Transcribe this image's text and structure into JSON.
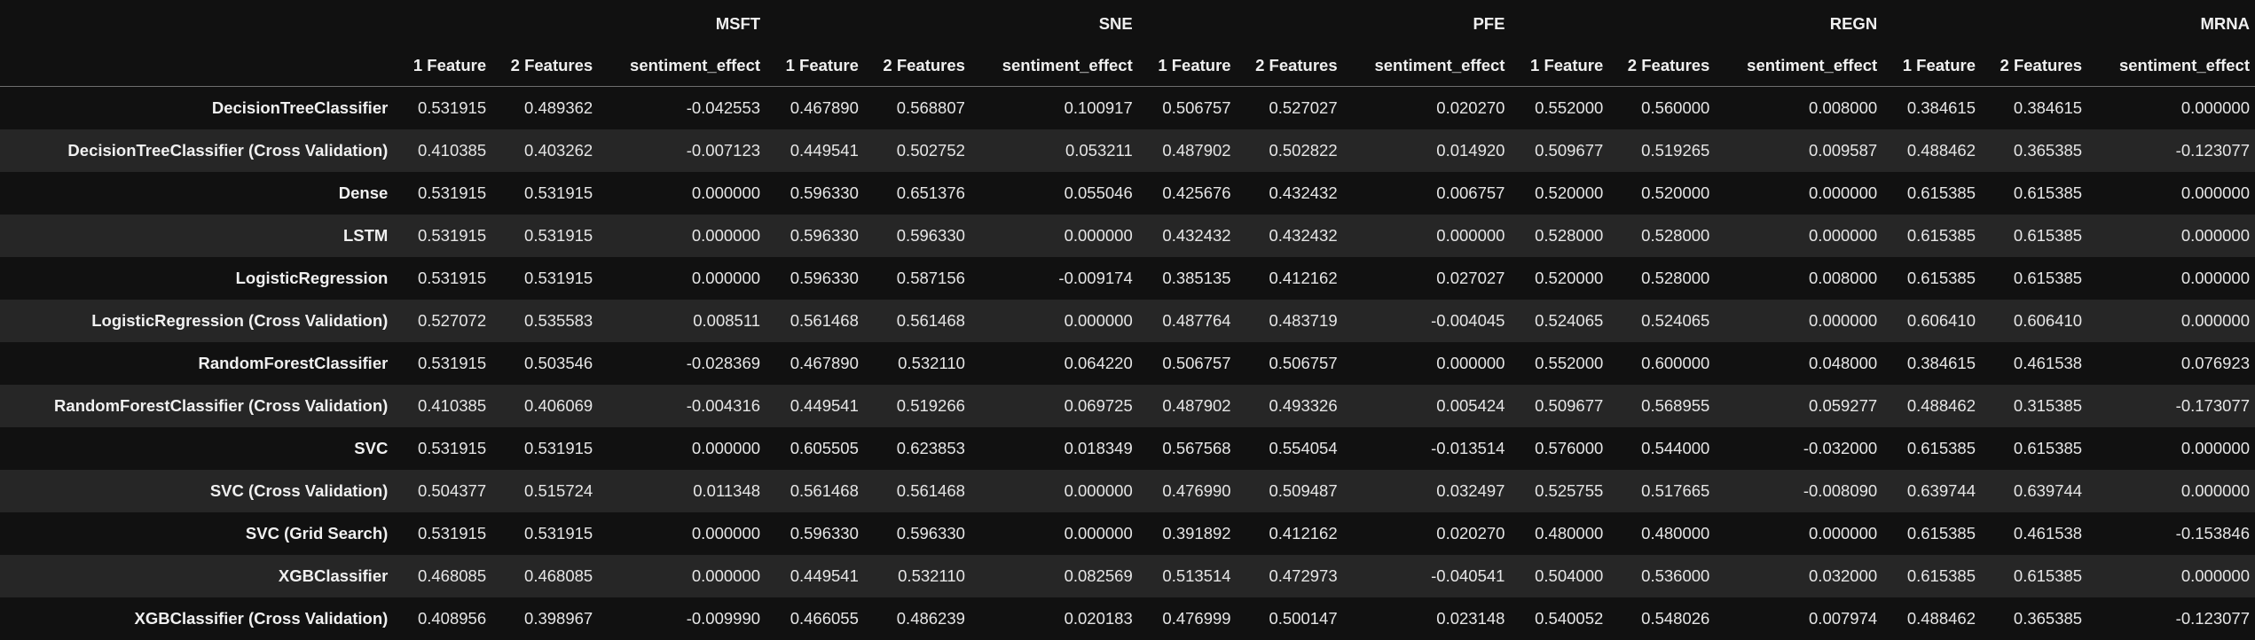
{
  "table": {
    "tickers": [
      "MSFT",
      "SNE",
      "PFE",
      "REGN",
      "MRNA"
    ],
    "sub_headers": [
      "1 Feature",
      "2 Features",
      "sentiment_effect"
    ],
    "rows": [
      {
        "label": "DecisionTreeClassifier",
        "values": [
          "0.531915",
          "0.489362",
          "-0.042553",
          "0.467890",
          "0.568807",
          "0.100917",
          "0.506757",
          "0.527027",
          "0.020270",
          "0.552000",
          "0.560000",
          "0.008000",
          "0.384615",
          "0.384615",
          "0.000000"
        ]
      },
      {
        "label": "DecisionTreeClassifier (Cross Validation)",
        "values": [
          "0.410385",
          "0.403262",
          "-0.007123",
          "0.449541",
          "0.502752",
          "0.053211",
          "0.487902",
          "0.502822",
          "0.014920",
          "0.509677",
          "0.519265",
          "0.009587",
          "0.488462",
          "0.365385",
          "-0.123077"
        ]
      },
      {
        "label": "Dense",
        "values": [
          "0.531915",
          "0.531915",
          "0.000000",
          "0.596330",
          "0.651376",
          "0.055046",
          "0.425676",
          "0.432432",
          "0.006757",
          "0.520000",
          "0.520000",
          "0.000000",
          "0.615385",
          "0.615385",
          "0.000000"
        ]
      },
      {
        "label": "LSTM",
        "values": [
          "0.531915",
          "0.531915",
          "0.000000",
          "0.596330",
          "0.596330",
          "0.000000",
          "0.432432",
          "0.432432",
          "0.000000",
          "0.528000",
          "0.528000",
          "0.000000",
          "0.615385",
          "0.615385",
          "0.000000"
        ]
      },
      {
        "label": "LogisticRegression",
        "values": [
          "0.531915",
          "0.531915",
          "0.000000",
          "0.596330",
          "0.587156",
          "-0.009174",
          "0.385135",
          "0.412162",
          "0.027027",
          "0.520000",
          "0.528000",
          "0.008000",
          "0.615385",
          "0.615385",
          "0.000000"
        ]
      },
      {
        "label": "LogisticRegression (Cross Validation)",
        "values": [
          "0.527072",
          "0.535583",
          "0.008511",
          "0.561468",
          "0.561468",
          "0.000000",
          "0.487764",
          "0.483719",
          "-0.004045",
          "0.524065",
          "0.524065",
          "0.000000",
          "0.606410",
          "0.606410",
          "0.000000"
        ]
      },
      {
        "label": "RandomForestClassifier",
        "values": [
          "0.531915",
          "0.503546",
          "-0.028369",
          "0.467890",
          "0.532110",
          "0.064220",
          "0.506757",
          "0.506757",
          "0.000000",
          "0.552000",
          "0.600000",
          "0.048000",
          "0.384615",
          "0.461538",
          "0.076923"
        ]
      },
      {
        "label": "RandomForestClassifier (Cross Validation)",
        "values": [
          "0.410385",
          "0.406069",
          "-0.004316",
          "0.449541",
          "0.519266",
          "0.069725",
          "0.487902",
          "0.493326",
          "0.005424",
          "0.509677",
          "0.568955",
          "0.059277",
          "0.488462",
          "0.315385",
          "-0.173077"
        ]
      },
      {
        "label": "SVC",
        "values": [
          "0.531915",
          "0.531915",
          "0.000000",
          "0.605505",
          "0.623853",
          "0.018349",
          "0.567568",
          "0.554054",
          "-0.013514",
          "0.576000",
          "0.544000",
          "-0.032000",
          "0.615385",
          "0.615385",
          "0.000000"
        ]
      },
      {
        "label": "SVC (Cross Validation)",
        "values": [
          "0.504377",
          "0.515724",
          "0.011348",
          "0.561468",
          "0.561468",
          "0.000000",
          "0.476990",
          "0.509487",
          "0.032497",
          "0.525755",
          "0.517665",
          "-0.008090",
          "0.639744",
          "0.639744",
          "0.000000"
        ]
      },
      {
        "label": "SVC (Grid Search)",
        "values": [
          "0.531915",
          "0.531915",
          "0.000000",
          "0.596330",
          "0.596330",
          "0.000000",
          "0.391892",
          "0.412162",
          "0.020270",
          "0.480000",
          "0.480000",
          "0.000000",
          "0.615385",
          "0.461538",
          "-0.153846"
        ]
      },
      {
        "label": "XGBClassifier",
        "values": [
          "0.468085",
          "0.468085",
          "0.000000",
          "0.449541",
          "0.532110",
          "0.082569",
          "0.513514",
          "0.472973",
          "-0.040541",
          "0.504000",
          "0.536000",
          "0.032000",
          "0.615385",
          "0.615385",
          "0.000000"
        ]
      },
      {
        "label": "XGBClassifier (Cross Validation)",
        "values": [
          "0.408956",
          "0.398967",
          "-0.009990",
          "0.466055",
          "0.486239",
          "0.020183",
          "0.476999",
          "0.500147",
          "0.023148",
          "0.540052",
          "0.548026",
          "0.007974",
          "0.488462",
          "0.365385",
          "-0.123077"
        ]
      }
    ]
  },
  "colors": {
    "background": "#111111",
    "row_alt": "#262626",
    "text": "#e6e6e6",
    "header_rule": "#6e6e6e"
  }
}
